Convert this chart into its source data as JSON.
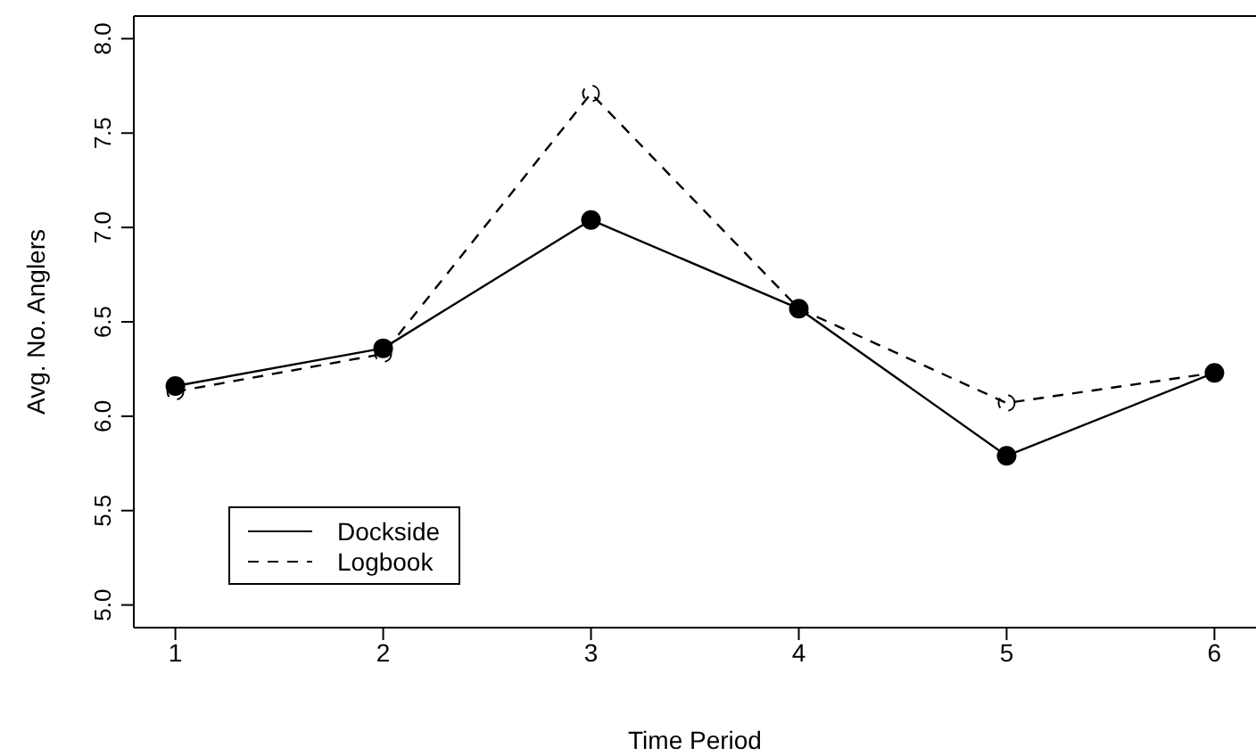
{
  "chart_data": {
    "type": "line",
    "xlabel": "Time Period",
    "ylabel": "Avg. No. Anglers",
    "x": [
      1,
      2,
      3,
      4,
      5,
      6
    ],
    "series": [
      {
        "name": "Dockside",
        "color": "#000000",
        "line_style": "solid",
        "values": [
          6.16,
          6.36,
          7.04,
          6.57,
          5.79,
          6.23
        ]
      },
      {
        "name": "Logbook",
        "color": "#000000",
        "line_style": "dashed",
        "values": [
          6.13,
          6.33,
          7.71,
          6.57,
          6.07,
          6.23
        ]
      }
    ],
    "xlim": [
      0.8,
      6.2
    ],
    "xticks": [
      1,
      2,
      3,
      4,
      5,
      6
    ],
    "ylim": [
      4.88,
      8.12
    ],
    "yticks": [
      {
        "value": 5,
        "label": "5.0"
      },
      5.5,
      {
        "value": 6,
        "label": "6.0"
      },
      6.5,
      {
        "value": 7,
        "label": "7.0"
      },
      7.5,
      {
        "value": 8,
        "label": "8.0"
      }
    ],
    "marker": "circle",
    "grid": false,
    "legend": "bottom left"
  }
}
